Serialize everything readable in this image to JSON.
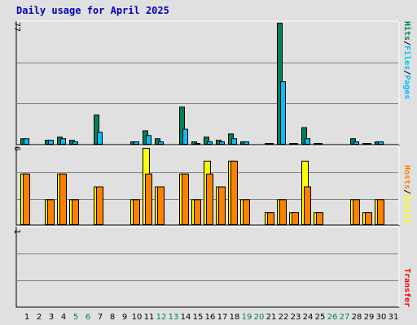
{
  "title": "Daily usage for April 2025",
  "colors": {
    "background": "#e0e0e0",
    "hits": "#00805c",
    "files": "#00c0ff",
    "pages": "#00c0ff",
    "visits": "#ffff00",
    "hosts": "#ff8000",
    "transfer": "#ff0000",
    "title": "#0000c0",
    "weekday": "#000000",
    "weekend": "#00805c"
  },
  "chart_data": [
    {
      "type": "bar",
      "panel": "top",
      "ymax_label": "77",
      "ylim": [
        0,
        77
      ],
      "side_label": {
        "hits": "Hits",
        "sep1": "/",
        "files": "Files",
        "sep2": "/",
        "pages": "Pages"
      },
      "categories": [
        "1",
        "2",
        "3",
        "4",
        "5",
        "6",
        "7",
        "8",
        "9",
        "10",
        "11",
        "12",
        "13",
        "14",
        "15",
        "16",
        "17",
        "18",
        "19",
        "20",
        "21",
        "22",
        "23",
        "24",
        "25",
        "26",
        "27",
        "28",
        "29",
        "30",
        "31"
      ],
      "weekend": [
        5,
        6,
        12,
        13,
        19,
        20,
        26,
        27
      ],
      "series": [
        {
          "name": "Hits",
          "values": [
            4,
            0,
            3,
            5,
            3,
            0,
            19,
            0,
            0,
            2,
            9,
            4,
            0,
            24,
            2,
            5,
            3,
            7,
            2,
            0,
            1,
            77,
            1,
            11,
            1,
            0,
            0,
            4,
            1,
            2,
            0
          ]
        },
        {
          "name": "Files",
          "values": [
            4,
            0,
            3,
            4,
            2,
            0,
            8,
            0,
            0,
            2,
            6,
            2,
            0,
            10,
            1,
            2,
            2,
            4,
            2,
            0,
            1,
            40,
            1,
            4,
            1,
            0,
            0,
            2,
            1,
            2,
            0
          ]
        }
      ]
    },
    {
      "type": "bar",
      "panel": "middle",
      "ymax_label": "6",
      "ylim": [
        0,
        6
      ],
      "side_label": {
        "hosts": "Hosts",
        "sep": "/",
        "visits": "Visits"
      },
      "series": [
        {
          "name": "Visits",
          "values": [
            4,
            0,
            2,
            4,
            2,
            0,
            3,
            0,
            0,
            2,
            6,
            3,
            0,
            4,
            2,
            5,
            3,
            5,
            2,
            0,
            1,
            2,
            1,
            5,
            1,
            0,
            0,
            2,
            1,
            2,
            0
          ]
        },
        {
          "name": "Hosts",
          "values": [
            4,
            0,
            2,
            4,
            2,
            0,
            3,
            0,
            0,
            2,
            4,
            3,
            0,
            4,
            2,
            4,
            3,
            5,
            2,
            0,
            1,
            2,
            1,
            3,
            1,
            0,
            0,
            2,
            1,
            2,
            0
          ]
        }
      ]
    },
    {
      "type": "bar",
      "panel": "bottom",
      "ymax_label": "1",
      "ylim": [
        0,
        1
      ],
      "side_label": {
        "transfer": "Transfer"
      },
      "series": [
        {
          "name": "Transfer",
          "values": [
            0,
            0,
            0,
            0,
            0,
            0,
            0,
            0,
            0,
            0,
            0,
            0,
            0,
            0,
            0,
            0,
            0,
            0,
            0,
            0,
            0,
            0,
            0,
            0,
            0,
            0,
            0,
            0,
            0,
            0,
            0
          ]
        }
      ]
    }
  ]
}
